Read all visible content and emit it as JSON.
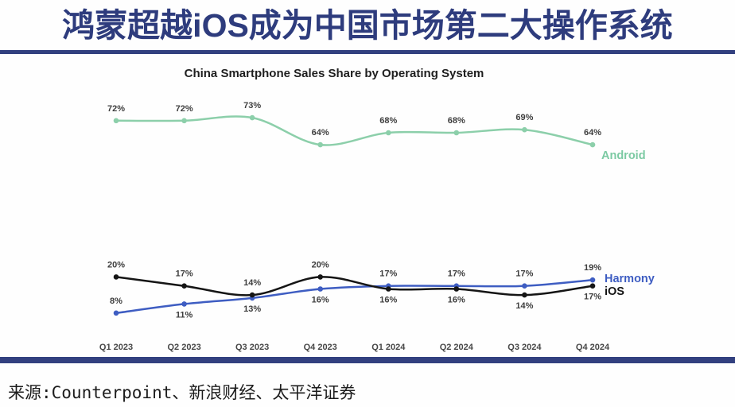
{
  "page": {
    "title": "鸿蒙超越iOS成为中国市场第二大操作系统",
    "accent_color": "#2e3c7d",
    "source_label": "来源:Counterpoint、新浪财经、太平洋证券"
  },
  "chart_data": {
    "type": "line",
    "title": "China Smartphone Sales Share by Operating System",
    "categories": [
      "Q1 2023",
      "Q2 2023",
      "Q3 2023",
      "Q4 2023",
      "Q1 2024",
      "Q2 2024",
      "Q3 2024",
      "Q4 2024"
    ],
    "unit": "%",
    "ylim": [
      0,
      80
    ],
    "grid": false,
    "legend_position": "line-end-labels",
    "series": [
      {
        "name": "Android",
        "color": "#8ccfaa",
        "label_color": "#7ccaa3",
        "values": [
          72,
          72,
          73,
          64,
          68,
          68,
          69,
          64
        ],
        "label_sides": [
          "above",
          "above",
          "above",
          "above",
          "above",
          "above",
          "above",
          "above"
        ]
      },
      {
        "name": "Harmony",
        "color": "#3e5dc2",
        "label_color": "#3e5dc2",
        "values": [
          8,
          11,
          13,
          16,
          17,
          17,
          17,
          19
        ],
        "label_sides": [
          "above",
          "below",
          "below",
          "below",
          "above",
          "above",
          "above",
          "above"
        ]
      },
      {
        "name": "iOS",
        "color": "#151515",
        "label_color": "#151515",
        "values": [
          20,
          17,
          14,
          20,
          16,
          16,
          14,
          17
        ],
        "label_sides": [
          "above",
          "above",
          "above",
          "above",
          "below",
          "below",
          "below",
          "below"
        ]
      }
    ]
  }
}
